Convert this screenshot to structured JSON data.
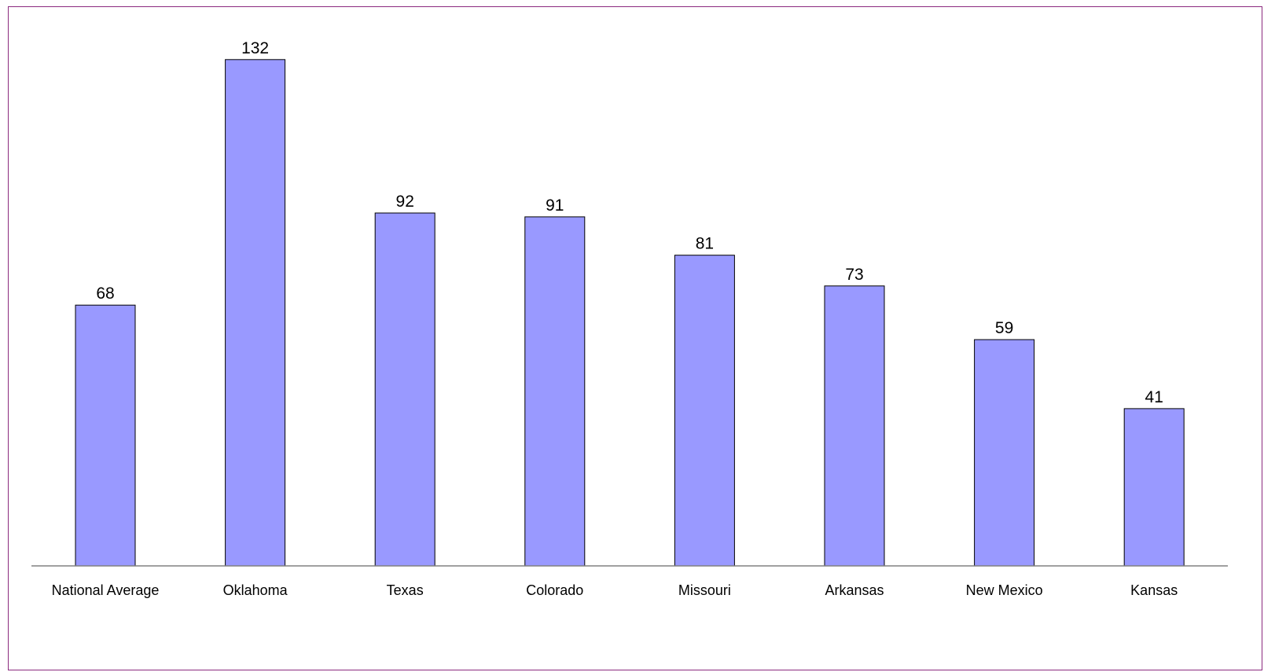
{
  "chart_data": {
    "type": "bar",
    "categories": [
      "National Average",
      "Oklahoma",
      "Texas",
      "Colorado",
      "Missouri",
      "Arkansas",
      "New Mexico",
      "Kansas"
    ],
    "values": [
      68,
      132,
      92,
      91,
      81,
      73,
      59,
      41
    ],
    "title": "",
    "xlabel": "",
    "ylabel": "",
    "ylim": [
      0,
      136
    ],
    "grid": false,
    "data_labels": true,
    "colors": {
      "bar_fill": "#9999ff",
      "bar_stroke": "#000000",
      "axis": "#808080",
      "frame_border": "#8b2a7e"
    }
  }
}
